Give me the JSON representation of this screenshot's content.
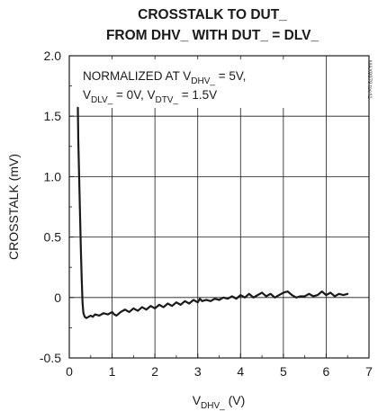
{
  "chart_data": {
    "type": "line",
    "title_line1": "CROSSTALK TO DUT_",
    "title_line2": "FROM DHV_ WITH DUT_ = DLV_",
    "ylabel": "CROSSTALK (mV)",
    "xlabel": {
      "main": "V",
      "sub": "DHV_",
      "unit": " (V)"
    },
    "annotation": {
      "line1": {
        "prefix": "NORMALIZED AT V",
        "sub": "DHV_",
        "suffix": " = 5V,"
      },
      "line2": {
        "v1": "V",
        "sub1": "DLV_",
        "mid": " = 0V, V",
        "sub2": "DTV_",
        "suffix": " = 1.5V"
      }
    },
    "watermark": "MAX9979 toc41",
    "xlim": [
      0,
      7
    ],
    "ylim": [
      -0.5,
      2.0
    ],
    "x_ticks": [
      "0",
      "1",
      "2",
      "3",
      "4",
      "5",
      "6",
      "7"
    ],
    "y_ticks": [
      "-0.5",
      "0",
      "0.5",
      "1.0",
      "1.5",
      "2.0"
    ],
    "grid": true,
    "series": [
      {
        "x": [
          0.2,
          0.21,
          0.23,
          0.25,
          0.27,
          0.29,
          0.31,
          0.33,
          0.36,
          0.4,
          0.45,
          0.5,
          0.55,
          0.6,
          0.7,
          0.8,
          0.9,
          1.0,
          1.05,
          1.1,
          1.2,
          1.3,
          1.4,
          1.5,
          1.6,
          1.7,
          1.8,
          1.9,
          2.0,
          2.1,
          2.2,
          2.3,
          2.4,
          2.5,
          2.6,
          2.7,
          2.8,
          2.9,
          3.0,
          3.05,
          3.1,
          3.2,
          3.3,
          3.4,
          3.5,
          3.6,
          3.7,
          3.8,
          3.9,
          4.0,
          4.1,
          4.2,
          4.3,
          4.4,
          4.5,
          4.6,
          4.7,
          4.8,
          4.9,
          5.0,
          5.1,
          5.2,
          5.3,
          5.4,
          5.5,
          5.6,
          5.7,
          5.8,
          5.9,
          6.0,
          6.1,
          6.2,
          6.3,
          6.4,
          6.5
        ],
        "y": [
          1.57,
          1.3,
          1.0,
          0.7,
          0.4,
          0.15,
          -0.05,
          -0.13,
          -0.16,
          -0.17,
          -0.16,
          -0.15,
          -0.16,
          -0.14,
          -0.15,
          -0.13,
          -0.14,
          -0.12,
          -0.14,
          -0.15,
          -0.12,
          -0.1,
          -0.12,
          -0.09,
          -0.11,
          -0.08,
          -0.1,
          -0.07,
          -0.09,
          -0.06,
          -0.08,
          -0.05,
          -0.07,
          -0.04,
          -0.06,
          -0.03,
          -0.05,
          -0.02,
          -0.04,
          -0.01,
          -0.03,
          -0.02,
          -0.03,
          -0.01,
          -0.02,
          0.0,
          -0.01,
          0.01,
          -0.01,
          0.02,
          0.0,
          0.03,
          0.0,
          0.02,
          0.04,
          0.01,
          0.03,
          0.0,
          0.02,
          0.04,
          0.05,
          0.02,
          0.0,
          0.01,
          0.01,
          0.03,
          0.01,
          0.02,
          0.05,
          0.02,
          0.04,
          0.01,
          0.03,
          0.02,
          0.03
        ]
      }
    ]
  }
}
